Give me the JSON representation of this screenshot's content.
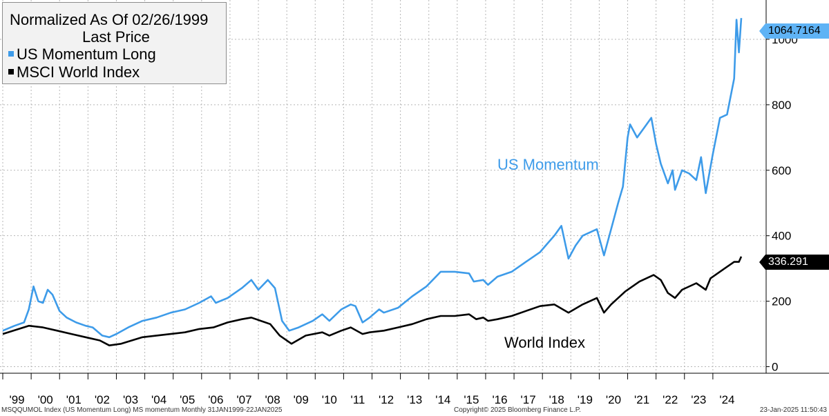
{
  "legend": {
    "title": "Normalized As Of 02/26/1999",
    "subtitle": "Last Price",
    "series": [
      {
        "label": "US Momentum Long",
        "color": "#3d9be9"
      },
      {
        "label": "MSCI World Index",
        "color": "#000000"
      }
    ]
  },
  "last_values": {
    "us_momentum": "1064.7164",
    "world": "336.291"
  },
  "annotations": {
    "us_momentum": "US Momentum",
    "world": "World Index"
  },
  "footer": {
    "left": "MSQQUMOL Index (US Momentum Long) MS momentum  Monthly 31JAN1999-22JAN2025",
    "center": "Copyright© 2025 Bloomberg Finance L.P.",
    "right": "23-Jan-2025 11:50:43"
  },
  "chart_data": {
    "type": "line",
    "x_start": "1999-01",
    "x_end": "2025-01",
    "ylim": [
      -20,
      1120
    ],
    "y_ticks": [
      0,
      200,
      400,
      600,
      800,
      1000
    ],
    "x_tick_labels": [
      "'99",
      "'00",
      "'01",
      "'02",
      "'03",
      "'04",
      "'05",
      "'06",
      "'07",
      "'08",
      "'09",
      "'10",
      "'11",
      "'12",
      "'13",
      "'14",
      "'15",
      "'16",
      "'17",
      "'18",
      "'19",
      "'20",
      "'21",
      "'22",
      "'23",
      "'24"
    ],
    "grid": true,
    "legend_position": "top-left",
    "series": [
      {
        "name": "US Momentum Long",
        "color": "#3d9be9",
        "points": [
          [
            "1999-01",
            110
          ],
          [
            "1999-06",
            125
          ],
          [
            "1999-10",
            135
          ],
          [
            "1999-12",
            175
          ],
          [
            "2000-02",
            245
          ],
          [
            "2000-04",
            200
          ],
          [
            "2000-06",
            195
          ],
          [
            "2000-08",
            235
          ],
          [
            "2000-10",
            220
          ],
          [
            "2001-01",
            170
          ],
          [
            "2001-04",
            150
          ],
          [
            "2001-08",
            135
          ],
          [
            "2001-12",
            125
          ],
          [
            "2002-03",
            120
          ],
          [
            "2002-07",
            95
          ],
          [
            "2002-10",
            90
          ],
          [
            "2003-01",
            100
          ],
          [
            "2003-06",
            120
          ],
          [
            "2003-12",
            140
          ],
          [
            "2004-06",
            150
          ],
          [
            "2004-12",
            165
          ],
          [
            "2005-06",
            175
          ],
          [
            "2005-12",
            195
          ],
          [
            "2006-05",
            215
          ],
          [
            "2006-07",
            195
          ],
          [
            "2006-12",
            210
          ],
          [
            "2007-06",
            240
          ],
          [
            "2007-10",
            265
          ],
          [
            "2008-01",
            235
          ],
          [
            "2008-05",
            265
          ],
          [
            "2008-08",
            240
          ],
          [
            "2008-11",
            140
          ],
          [
            "2009-02",
            110
          ],
          [
            "2009-06",
            120
          ],
          [
            "2009-12",
            140
          ],
          [
            "2010-04",
            160
          ],
          [
            "2010-07",
            140
          ],
          [
            "2010-12",
            175
          ],
          [
            "2011-04",
            190
          ],
          [
            "2011-06",
            185
          ],
          [
            "2011-09",
            135
          ],
          [
            "2011-12",
            150
          ],
          [
            "2012-04",
            175
          ],
          [
            "2012-06",
            165
          ],
          [
            "2012-12",
            180
          ],
          [
            "2013-06",
            215
          ],
          [
            "2013-12",
            245
          ],
          [
            "2014-06",
            290
          ],
          [
            "2014-12",
            290
          ],
          [
            "2015-06",
            285
          ],
          [
            "2015-08",
            260
          ],
          [
            "2015-12",
            265
          ],
          [
            "2016-02",
            250
          ],
          [
            "2016-06",
            275
          ],
          [
            "2016-12",
            290
          ],
          [
            "2017-06",
            320
          ],
          [
            "2017-12",
            350
          ],
          [
            "2018-03",
            375
          ],
          [
            "2018-06",
            400
          ],
          [
            "2018-09",
            430
          ],
          [
            "2018-12",
            330
          ],
          [
            "2019-03",
            370
          ],
          [
            "2019-06",
            400
          ],
          [
            "2019-12",
            420
          ],
          [
            "2020-03",
            340
          ],
          [
            "2020-06",
            420
          ],
          [
            "2020-09",
            500
          ],
          [
            "2020-11",
            550
          ],
          [
            "2021-01",
            700
          ],
          [
            "2021-02",
            740
          ],
          [
            "2021-05",
            700
          ],
          [
            "2021-08",
            730
          ],
          [
            "2021-11",
            760
          ],
          [
            "2022-01",
            680
          ],
          [
            "2022-03",
            620
          ],
          [
            "2022-06",
            560
          ],
          [
            "2022-08",
            600
          ],
          [
            "2022-09",
            540
          ],
          [
            "2022-12",
            600
          ],
          [
            "2023-03",
            590
          ],
          [
            "2023-06",
            570
          ],
          [
            "2023-08",
            640
          ],
          [
            "2023-10",
            530
          ],
          [
            "2024-01",
            650
          ],
          [
            "2024-04",
            760
          ],
          [
            "2024-07",
            770
          ],
          [
            "2024-10",
            880
          ],
          [
            "2024-11",
            1060
          ],
          [
            "2024-12",
            960
          ],
          [
            "2025-01",
            1064.7164
          ]
        ]
      },
      {
        "name": "MSCI World Index",
        "color": "#000000",
        "points": [
          [
            "1999-01",
            100
          ],
          [
            "1999-12",
            125
          ],
          [
            "2000-06",
            120
          ],
          [
            "2000-12",
            110
          ],
          [
            "2001-06",
            100
          ],
          [
            "2001-12",
            90
          ],
          [
            "2002-06",
            80
          ],
          [
            "2002-10",
            65
          ],
          [
            "2003-03",
            70
          ],
          [
            "2003-12",
            90
          ],
          [
            "2004-06",
            95
          ],
          [
            "2004-12",
            100
          ],
          [
            "2005-06",
            105
          ],
          [
            "2005-12",
            115
          ],
          [
            "2006-06",
            120
          ],
          [
            "2006-12",
            135
          ],
          [
            "2007-06",
            145
          ],
          [
            "2007-10",
            150
          ],
          [
            "2008-06",
            130
          ],
          [
            "2008-10",
            95
          ],
          [
            "2009-03",
            70
          ],
          [
            "2009-09",
            95
          ],
          [
            "2010-04",
            105
          ],
          [
            "2010-07",
            95
          ],
          [
            "2010-12",
            110
          ],
          [
            "2011-04",
            120
          ],
          [
            "2011-09",
            100
          ],
          [
            "2011-12",
            105
          ],
          [
            "2012-06",
            110
          ],
          [
            "2012-12",
            120
          ],
          [
            "2013-06",
            130
          ],
          [
            "2013-12",
            145
          ],
          [
            "2014-06",
            155
          ],
          [
            "2014-12",
            155
          ],
          [
            "2015-06",
            160
          ],
          [
            "2015-09",
            145
          ],
          [
            "2015-12",
            150
          ],
          [
            "2016-02",
            140
          ],
          [
            "2016-06",
            145
          ],
          [
            "2016-12",
            155
          ],
          [
            "2017-06",
            170
          ],
          [
            "2017-12",
            185
          ],
          [
            "2018-06",
            190
          ],
          [
            "2018-12",
            165
          ],
          [
            "2019-06",
            190
          ],
          [
            "2019-12",
            210
          ],
          [
            "2020-03",
            165
          ],
          [
            "2020-06",
            190
          ],
          [
            "2020-12",
            230
          ],
          [
            "2021-06",
            260
          ],
          [
            "2021-12",
            280
          ],
          [
            "2022-03",
            265
          ],
          [
            "2022-06",
            225
          ],
          [
            "2022-09",
            210
          ],
          [
            "2022-12",
            235
          ],
          [
            "2023-06",
            255
          ],
          [
            "2023-10",
            235
          ],
          [
            "2023-12",
            270
          ],
          [
            "2024-06",
            300
          ],
          [
            "2024-10",
            320
          ],
          [
            "2024-12",
            320
          ],
          [
            "2025-01",
            336.291
          ]
        ]
      }
    ],
    "annotations": [
      {
        "text": "US Momentum",
        "series": "US Momentum Long"
      },
      {
        "text": "World Index",
        "series": "MSCI World Index"
      }
    ]
  }
}
